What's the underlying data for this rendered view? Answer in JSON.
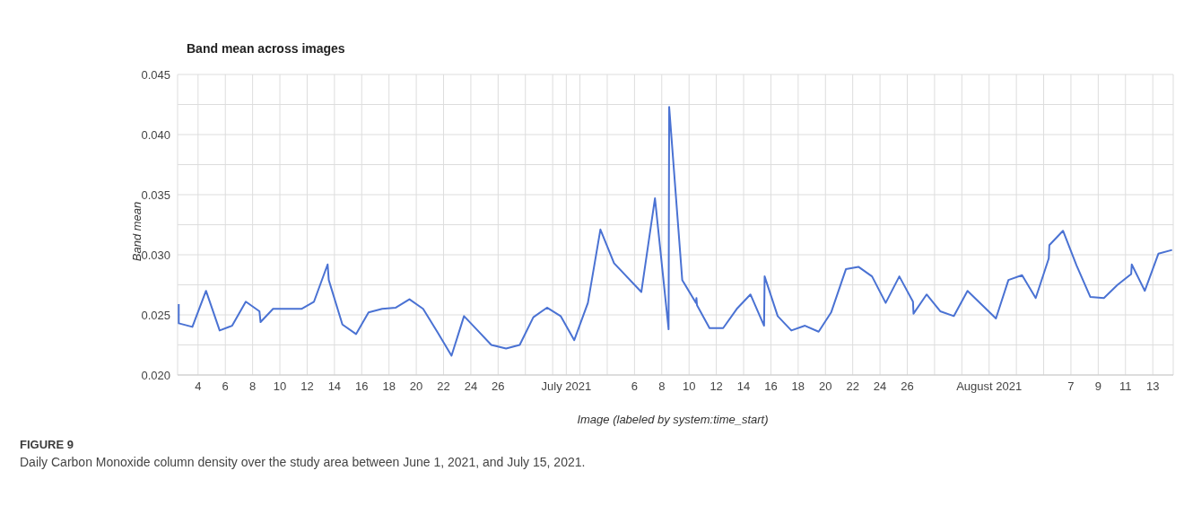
{
  "chart_data": {
    "type": "line",
    "title": "Band mean across images",
    "xlabel": "Image (labeled by system:time_start)",
    "ylabel": "Band mean",
    "annotations": [
      "FIGURE 9",
      "Daily Carbon Monoxide column density over the study area between June 1, 2021, and July 15, 2021."
    ],
    "x": [
      "2021-06-02T14:00",
      "2021-06-02T14:00",
      "2021-06-03T14:00",
      "2021-06-04T14:00",
      "2021-06-05T14:00",
      "2021-06-06T12:00",
      "2021-06-07T12:00",
      "2021-06-08T12:00",
      "2021-06-08T14:00",
      "2021-06-09T12:00",
      "2021-06-10T14:00",
      "2021-06-11T14:00",
      "2021-06-12T12:00",
      "2021-06-13T12:00",
      "2021-06-13T14:00",
      "2021-06-14T14:00",
      "2021-06-15T14:00",
      "2021-06-16T12:00",
      "2021-06-17T12:00",
      "2021-06-18T12:00",
      "2021-06-19T12:00",
      "2021-06-20T12:00",
      "2021-06-21T14:00",
      "2021-06-22T14:00",
      "2021-06-23T12:00",
      "2021-06-24T12:00",
      "2021-06-25T12:00",
      "2021-06-26T14:00",
      "2021-06-27T14:00",
      "2021-06-28T14:00",
      "2021-06-29T14:00",
      "2021-06-30T14:00",
      "2021-07-01T14:00",
      "2021-07-02T14:00",
      "2021-07-03T12:00",
      "2021-07-04T12:00",
      "2021-07-06T12:00",
      "2021-07-07T12:00",
      "2021-07-08T12:00",
      "2021-07-08T13:00",
      "2021-07-09T12:00",
      "2021-07-10T12:00",
      "2021-07-10T13:00",
      "2021-07-10T14:00",
      "2021-07-11T12:00",
      "2021-07-12T12:00",
      "2021-07-13T12:00",
      "2021-07-14T12:00",
      "2021-07-15T12:00",
      "2021-07-15T13:00",
      "2021-07-16T12:00",
      "2021-07-17T12:00",
      "2021-07-18T12:00",
      "2021-07-19T12:00",
      "2021-07-20T10:00",
      "2021-07-21T12:00",
      "2021-07-22T10:00",
      "2021-07-23T10:00",
      "2021-07-24T10:00",
      "2021-07-25T10:00",
      "2021-07-26T10:00",
      "2021-07-26T11:00",
      "2021-07-27T10:00",
      "2021-07-28T10:00",
      "2021-07-29T10:00",
      "2021-07-30T10:00",
      "2021-07-31T10:00",
      "2021-08-01T12:00",
      "2021-08-02T10:00",
      "2021-08-03T10:00",
      "2021-08-04T10:00",
      "2021-08-05T09:00",
      "2021-08-05T10:00",
      "2021-08-06T10:00",
      "2021-08-07T10:00",
      "2021-08-08T10:00",
      "2021-08-09T10:00",
      "2021-08-10T10:00",
      "2021-08-11T10:00",
      "2021-08-11T11:00",
      "2021-08-12T10:00",
      "2021-08-13T10:00",
      "2021-08-14T10:00"
    ],
    "series": [
      {
        "color": "#4a72d3",
        "values": [
          0.0259,
          0.0243,
          0.024,
          0.027,
          0.0237,
          0.0241,
          0.0261,
          0.0253,
          0.0244,
          0.0255,
          0.0255,
          0.0255,
          0.0261,
          0.0292,
          0.0279,
          0.0242,
          0.0234,
          0.0252,
          0.0255,
          0.0256,
          0.0263,
          0.0255,
          0.0235,
          0.0216,
          0.0249,
          0.0237,
          0.0225,
          0.0222,
          0.0225,
          0.0248,
          0.0256,
          0.0249,
          0.0229,
          0.026,
          0.0321,
          0.0293,
          0.0269,
          0.0347,
          0.0238,
          0.0423,
          0.0279,
          0.026,
          0.0264,
          0.0258,
          0.0239,
          0.0239,
          0.0255,
          0.0267,
          0.0241,
          0.0282,
          0.0249,
          0.0237,
          0.0241,
          0.0236,
          0.0252,
          0.0288,
          0.029,
          0.0282,
          0.026,
          0.0282,
          0.0261,
          0.0251,
          0.0267,
          0.0253,
          0.0249,
          0.027,
          0.0259,
          0.0247,
          0.0279,
          0.0283,
          0.0264,
          0.0297,
          0.0308,
          0.032,
          0.0291,
          0.0265,
          0.0264,
          0.0275,
          0.0284,
          0.0292,
          0.027,
          0.0301,
          0.0304
        ]
      }
    ],
    "xlim": [
      "2021-06-02T12:00",
      "2021-08-14T12:00"
    ],
    "xticks": [
      {
        "value": "2021-06-04",
        "label": "4"
      },
      {
        "value": "2021-06-06",
        "label": "6"
      },
      {
        "value": "2021-06-08",
        "label": "8"
      },
      {
        "value": "2021-06-10",
        "label": "10"
      },
      {
        "value": "2021-06-12",
        "label": "12"
      },
      {
        "value": "2021-06-14",
        "label": "14"
      },
      {
        "value": "2021-06-16",
        "label": "16"
      },
      {
        "value": "2021-06-18",
        "label": "18"
      },
      {
        "value": "2021-06-20",
        "label": "20"
      },
      {
        "value": "2021-06-22",
        "label": "22"
      },
      {
        "value": "2021-06-24",
        "label": "24"
      },
      {
        "value": "2021-06-26",
        "label": "26"
      },
      {
        "value": "2021-06-28",
        "label": null
      },
      {
        "value": "2021-06-30",
        "label": null
      },
      {
        "value": "2021-07-01",
        "label": "July 2021"
      },
      {
        "value": "2021-07-02",
        "label": null
      },
      {
        "value": "2021-07-04",
        "label": null
      },
      {
        "value": "2021-07-06",
        "label": "6"
      },
      {
        "value": "2021-07-08",
        "label": "8"
      },
      {
        "value": "2021-07-10",
        "label": "10"
      },
      {
        "value": "2021-07-12",
        "label": "12"
      },
      {
        "value": "2021-07-14",
        "label": "14"
      },
      {
        "value": "2021-07-16",
        "label": "16"
      },
      {
        "value": "2021-07-18",
        "label": "18"
      },
      {
        "value": "2021-07-20",
        "label": "20"
      },
      {
        "value": "2021-07-22",
        "label": "22"
      },
      {
        "value": "2021-07-24",
        "label": "24"
      },
      {
        "value": "2021-07-26",
        "label": "26"
      },
      {
        "value": "2021-07-28",
        "label": null
      },
      {
        "value": "2021-07-30",
        "label": null
      },
      {
        "value": "2021-08-01",
        "label": "August 2021"
      },
      {
        "value": "2021-08-03",
        "label": null
      },
      {
        "value": "2021-08-05",
        "label": null
      },
      {
        "value": "2021-08-07",
        "label": "7"
      },
      {
        "value": "2021-08-09",
        "label": "9"
      },
      {
        "value": "2021-08-11",
        "label": "11"
      },
      {
        "value": "2021-08-13",
        "label": "13"
      }
    ],
    "ylim": [
      0.02,
      0.045
    ],
    "yticks": [
      {
        "value": 0.02,
        "label": "0.020"
      },
      {
        "value": 0.0225,
        "label": null
      },
      {
        "value": 0.025,
        "label": "0.025"
      },
      {
        "value": 0.0275,
        "label": null
      },
      {
        "value": 0.03,
        "label": "0.030"
      },
      {
        "value": 0.0325,
        "label": null
      },
      {
        "value": 0.035,
        "label": "0.035"
      },
      {
        "value": 0.0375,
        "label": null
      },
      {
        "value": 0.04,
        "label": "0.040"
      },
      {
        "value": 0.0425,
        "label": null
      },
      {
        "value": 0.045,
        "label": "0.045"
      }
    ],
    "grid": true,
    "legend": false,
    "marker": "none",
    "line_style": "solid"
  }
}
